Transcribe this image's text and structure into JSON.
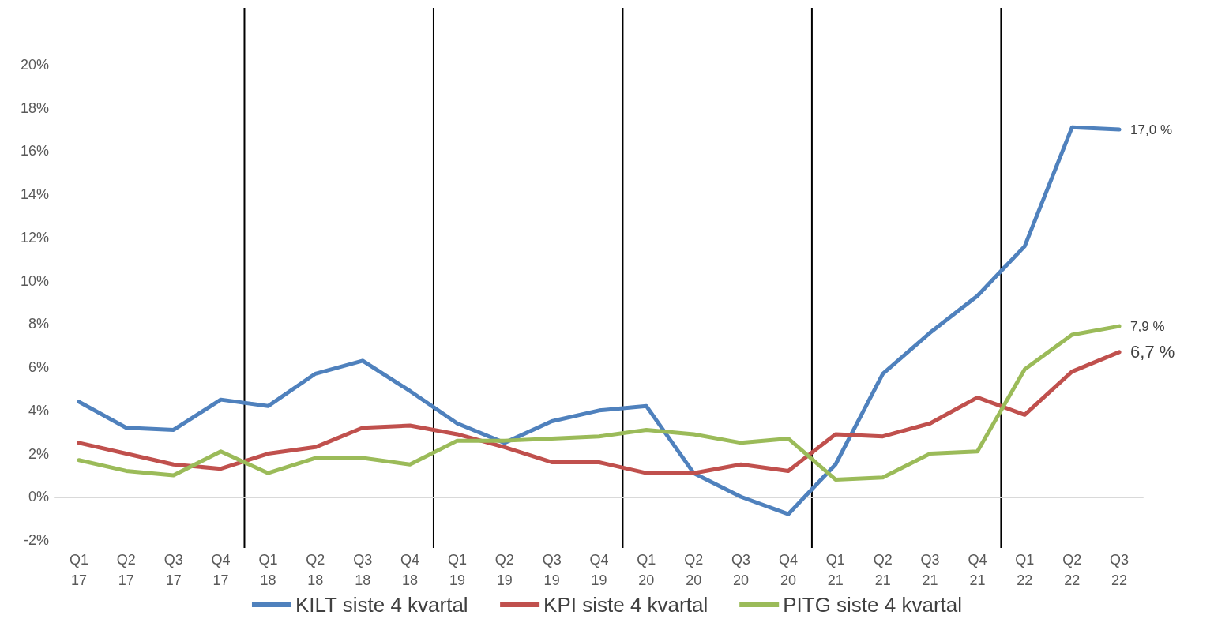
{
  "chart_data": {
    "type": "line",
    "categories": [
      "Q1\n17",
      "Q2\n17",
      "Q3\n17",
      "Q4\n17",
      "Q1\n18",
      "Q2\n18",
      "Q3\n18",
      "Q4\n18",
      "Q1\n19",
      "Q2\n19",
      "Q3\n19",
      "Q4\n19",
      "Q1\n20",
      "Q2\n20",
      "Q3\n20",
      "Q4\n20",
      "Q1\n21",
      "Q2\n21",
      "Q3\n21",
      "Q4\n21",
      "Q1\n22",
      "Q2\n22",
      "Q3\n22"
    ],
    "series": [
      {
        "name": "KILT siste 4 kvartal",
        "color": "#4f81bd",
        "values": [
          4.4,
          3.2,
          3.1,
          4.5,
          4.2,
          5.7,
          6.3,
          4.9,
          3.4,
          2.5,
          3.5,
          4.0,
          4.2,
          1.1,
          0.0,
          -0.8,
          1.5,
          5.7,
          7.6,
          9.3,
          11.6,
          17.1,
          17.0
        ],
        "value_labels": [
          null,
          null,
          null,
          null,
          null,
          null,
          null,
          null,
          null,
          null,
          null,
          null,
          null,
          null,
          null,
          null,
          null,
          null,
          null,
          null,
          null,
          null,
          "17,0 %"
        ]
      },
      {
        "name": "KPI siste 4 kvartal",
        "color": "#c0504d",
        "values": [
          2.5,
          2.0,
          1.5,
          1.3,
          2.0,
          2.3,
          3.2,
          3.3,
          2.9,
          2.3,
          1.6,
          1.6,
          1.1,
          1.1,
          1.5,
          1.2,
          2.9,
          2.8,
          3.4,
          4.6,
          3.8,
          5.8,
          6.7
        ],
        "value_labels": [
          null,
          null,
          null,
          null,
          null,
          null,
          null,
          null,
          null,
          null,
          null,
          null,
          null,
          null,
          null,
          null,
          null,
          null,
          null,
          null,
          null,
          null,
          "6,7 %"
        ]
      },
      {
        "name": "PITG siste 4 kvartal",
        "color": "#9bbb59",
        "values": [
          1.7,
          1.2,
          1.0,
          2.1,
          1.1,
          1.8,
          1.8,
          1.5,
          2.6,
          2.6,
          2.7,
          2.8,
          3.1,
          2.9,
          2.5,
          2.7,
          0.8,
          0.9,
          2.0,
          2.1,
          5.9,
          7.5,
          7.9
        ],
        "value_labels": [
          null,
          null,
          null,
          null,
          null,
          null,
          null,
          null,
          null,
          null,
          null,
          null,
          null,
          null,
          null,
          null,
          null,
          null,
          null,
          null,
          null,
          null,
          "7,9 %"
        ]
      }
    ],
    "ylim": [
      -2,
      20
    ],
    "yticks": [
      {
        "value": -2,
        "label": "-2%"
      },
      {
        "value": 0,
        "label": "0%"
      },
      {
        "value": 2,
        "label": "2%"
      },
      {
        "value": 4,
        "label": "4%"
      },
      {
        "value": 6,
        "label": "6%"
      },
      {
        "value": 8,
        "label": "8%"
      },
      {
        "value": 10,
        "label": "10%"
      },
      {
        "value": 12,
        "label": "12%"
      },
      {
        "value": 14,
        "label": "14%"
      },
      {
        "value": 16,
        "label": "16%"
      },
      {
        "value": 18,
        "label": "18%"
      },
      {
        "value": 20,
        "label": "20%"
      }
    ],
    "grid": false,
    "legend": "bottom",
    "marker": "none",
    "line_style": "solid"
  }
}
